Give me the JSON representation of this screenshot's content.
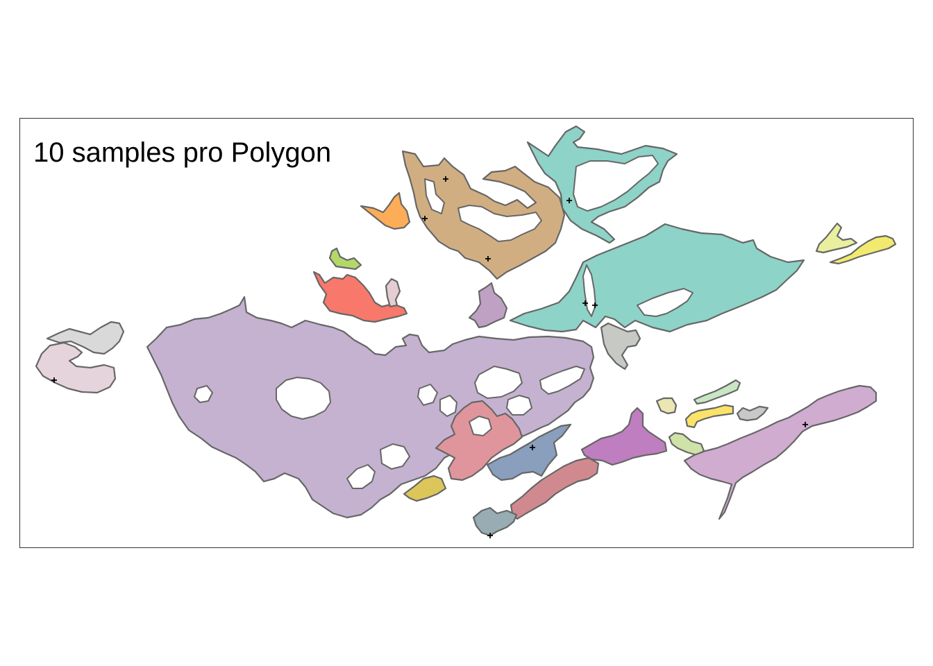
{
  "map": {
    "title": "10 samples pro Polygon",
    "stroke_color": "#666666",
    "marker_color": "#000000",
    "polygons": [
      {
        "name": "teal-north-polygon",
        "color": "#8dd3c7"
      },
      {
        "name": "teal-center-polygon",
        "color": "#8dd3c7"
      },
      {
        "name": "tan-polygon",
        "color": "#d1ae82"
      },
      {
        "name": "orange-polygon",
        "color": "#fdac57"
      },
      {
        "name": "green-small-polygon",
        "color": "#b3d869"
      },
      {
        "name": "red-polygon",
        "color": "#f8786b"
      },
      {
        "name": "pink-small-polygon",
        "color": "#e4cdd3"
      },
      {
        "name": "mauve-small-polygon",
        "color": "#bfa2c3"
      },
      {
        "name": "purple-large-polygon",
        "color": "#c4b2d0"
      },
      {
        "name": "grey-west-polygon",
        "color": "#d9d9d9"
      },
      {
        "name": "pink-west-polygon",
        "color": "#e6d4dc"
      },
      {
        "name": "rose-polygon",
        "color": "#e0959c"
      },
      {
        "name": "blue-polygon",
        "color": "#8a9ebd"
      },
      {
        "name": "yellow-small-polygon",
        "color": "#dcc65a"
      },
      {
        "name": "dusty-rose-polygon",
        "color": "#d08a8f"
      },
      {
        "name": "magenta-polygon",
        "color": "#be7ebf"
      },
      {
        "name": "slate-polygon",
        "color": "#97acb3"
      },
      {
        "name": "pale-green-polygon",
        "color": "#cfe3a9"
      },
      {
        "name": "cream-polygon",
        "color": "#ebe6b4"
      },
      {
        "name": "yellow-polygon",
        "color": "#fbe36a"
      },
      {
        "name": "mint-polygon",
        "color": "#c9e6c4"
      },
      {
        "name": "grey-east-polygon",
        "color": "#c8c8c8"
      },
      {
        "name": "lilac-east-polygon",
        "color": "#cfacd0"
      },
      {
        "name": "lime-east-polygon",
        "color": "#e9ef9f"
      },
      {
        "name": "yellow-east-polygon",
        "color": "#f2ea6e"
      },
      {
        "name": "grey-center-polygon",
        "color": "#c7c9c4"
      }
    ]
  }
}
